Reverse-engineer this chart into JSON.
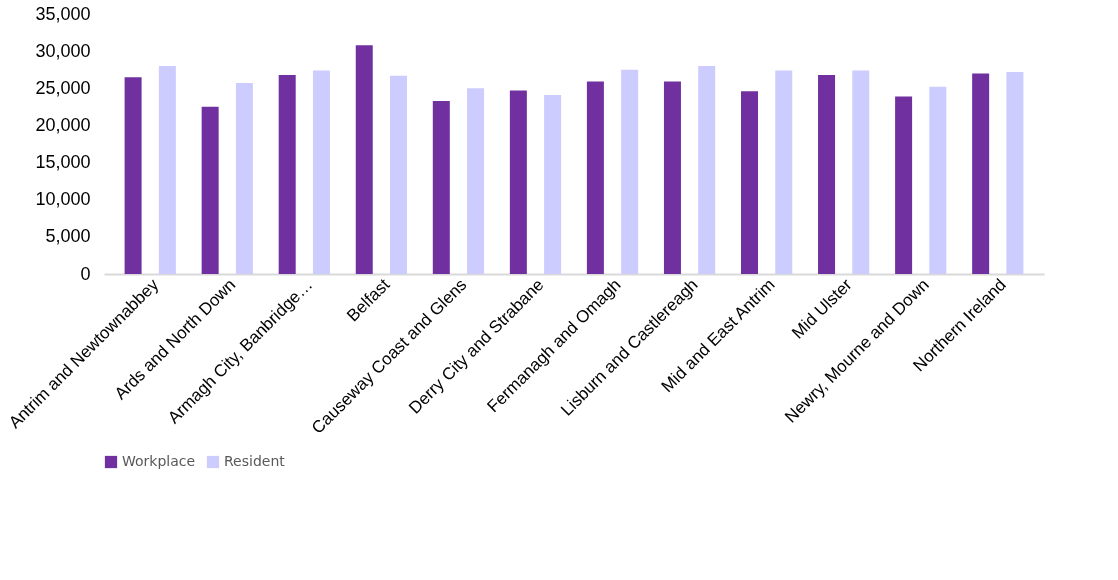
{
  "chart_data": {
    "type": "bar",
    "categories": [
      "Antrim and Newtownabbey",
      "Ards and North Down",
      "Armagh City, Banbridge…",
      "Belfast",
      "Causeway Coast and Glens",
      "Derry City and Strabane",
      "Fermanagh and Omagh",
      "Lisburn and Castlereagh",
      "Mid and East Antrim",
      "Mid Ulster",
      "Newry, Mourne and Down",
      "Northern Ireland"
    ],
    "series": [
      {
        "name": "Workplace",
        "color": "#7030a0",
        "values": [
          26500,
          22500,
          26800,
          30800,
          23300,
          24700,
          25900,
          25900,
          24600,
          26800,
          23900,
          27000
        ]
      },
      {
        "name": "Resident",
        "color": "#ccccff",
        "values": [
          28000,
          25700,
          27400,
          26700,
          25000,
          24100,
          27500,
          28000,
          27400,
          27400,
          25200,
          27200
        ]
      }
    ],
    "ylim": [
      0,
      35000
    ],
    "yticks": [
      {
        "value": 0,
        "label": "0"
      },
      {
        "value": 5000,
        "label": "5,000"
      },
      {
        "value": 10000,
        "label": "10,000"
      },
      {
        "value": 15000,
        "label": "15,000"
      },
      {
        "value": 20000,
        "label": "20,000"
      },
      {
        "value": 25000,
        "label": "25,000"
      },
      {
        "value": 30000,
        "label": "30,000"
      },
      {
        "value": 35000,
        "label": "35,000"
      }
    ],
    "grid": false,
    "legend": "bottom"
  }
}
